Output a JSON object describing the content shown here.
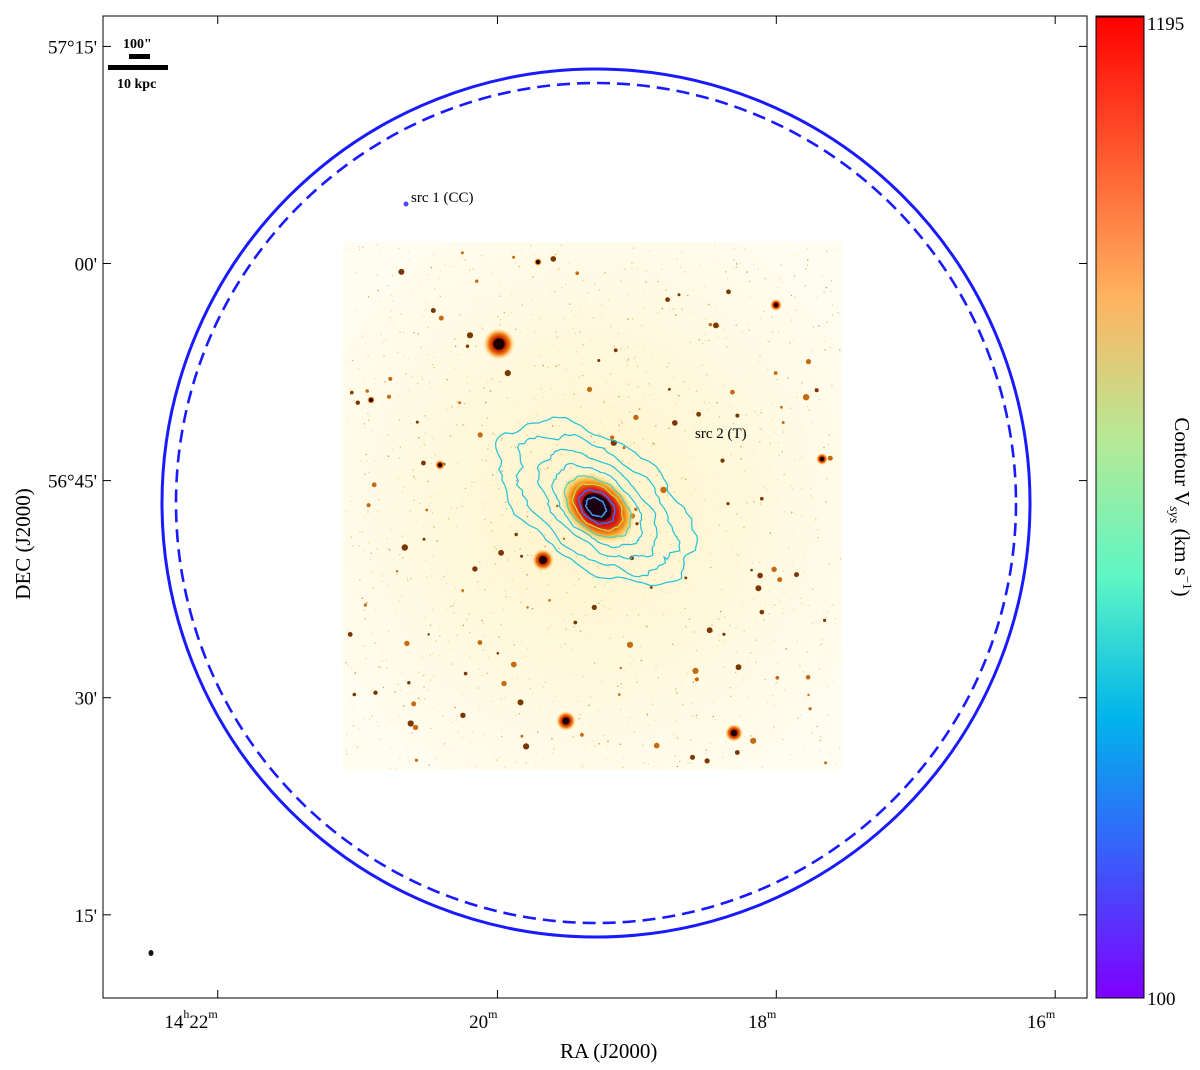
{
  "chart_data": {
    "type": "sky-image",
    "xlabel": "RA (J2000)",
    "ylabel": "DEC (J2000)",
    "x_ticks": [
      {
        "ra_hours": 14.3667,
        "label_main": "14",
        "label_h": "h",
        "label_m": "22",
        "label_m_sup": "m"
      },
      {
        "ra_hours": 14.3333,
        "label_main": "20",
        "label_m_sup": "m"
      },
      {
        "ra_hours": 14.3,
        "label_main": "18",
        "label_m_sup": "m"
      },
      {
        "ra_hours": 14.2667,
        "label_main": "16",
        "label_m_sup": "m"
      }
    ],
    "y_ticks": [
      {
        "dec_deg": 57.25,
        "label": "57°15'"
      },
      {
        "dec_deg": 57.0,
        "label": "00'"
      },
      {
        "dec_deg": 56.75,
        "label": "56°45'"
      },
      {
        "dec_deg": 56.5,
        "label": "30'"
      },
      {
        "dec_deg": 56.25,
        "label": "15'"
      }
    ],
    "colorbar": {
      "label": "Contour V",
      "label_sub": "sys",
      "label_unit": "(km s",
      "label_unit_sup": "−1",
      "label_close": ")",
      "min": 100,
      "max": 1195,
      "min_label": "100",
      "max_label": "1195",
      "colormap": "rainbow",
      "stops": [
        "#7f00ff",
        "#3a5cfb",
        "#00b4eb",
        "#5ef6c4",
        "#b8e895",
        "#ffb360",
        "#ff5a2f",
        "#ff0000"
      ]
    },
    "annotations": [
      {
        "text": "src 1 (CC)"
      },
      {
        "text": "src 2 (T)"
      }
    ],
    "scale_bar": {
      "top_label": "100\"",
      "bottom_label": "10 kpc"
    },
    "circles": [
      {
        "style": "solid",
        "color": "#1a1aff"
      },
      {
        "style": "dashed",
        "color": "#1a1aff"
      }
    ],
    "contour_color": "#22c0d8"
  }
}
